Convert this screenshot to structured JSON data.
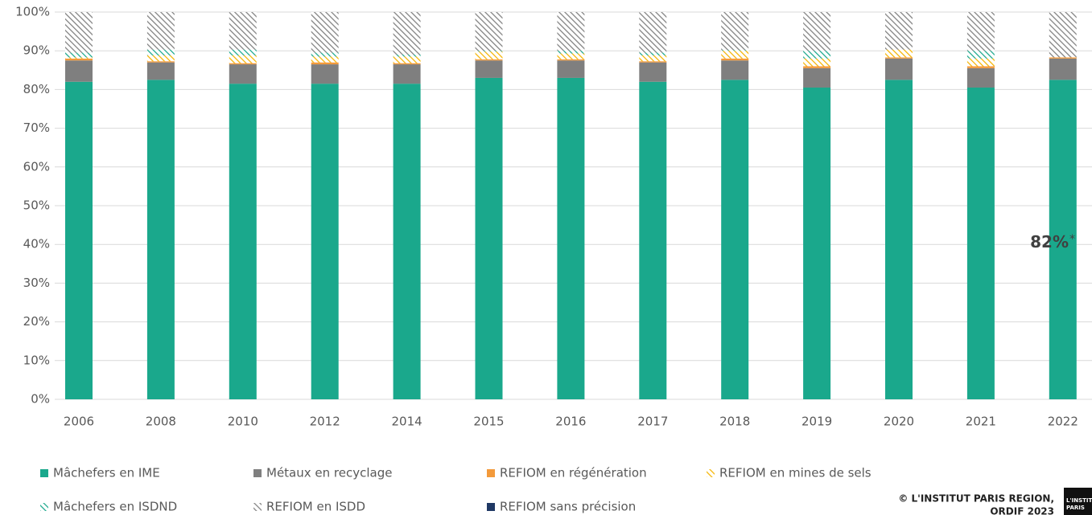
{
  "chart_data": {
    "type": "stacked_bar",
    "categories": [
      "2006",
      "2008",
      "2010",
      "2012",
      "2014",
      "2015",
      "2016",
      "2017",
      "2018",
      "2019",
      "2020",
      "2021",
      "2022"
    ],
    "series": [
      {
        "name": "Mâchefers en IME",
        "color": "#1aa88c",
        "hatch": false,
        "values": [
          82,
          82.5,
          81.5,
          81.5,
          81.5,
          83,
          83,
          82,
          82.5,
          80.5,
          82.5,
          80.5,
          82.5
        ]
      },
      {
        "name": "Métaux en recyclage",
        "color": "#7f7f7f",
        "hatch": false,
        "values": [
          5.5,
          4.5,
          5,
          5,
          5,
          4.5,
          4.5,
          5,
          5,
          5,
          5.5,
          5,
          5.5
        ]
      },
      {
        "name": "REFIOM en régénération",
        "color": "#f39a3b",
        "hatch": false,
        "values": [
          0.5,
          0.3,
          0.3,
          0.5,
          0.3,
          0.3,
          0.3,
          0.3,
          0.5,
          0.5,
          0.3,
          0.5,
          0.3
        ]
      },
      {
        "name": "REFIOM en mines de sels",
        "color": "#f5b400",
        "hatch": true,
        "values": [
          0.3,
          1.5,
          2,
          1.5,
          1.7,
          2,
          1.5,
          1.5,
          2,
          2,
          2,
          2,
          0
        ]
      },
      {
        "name": "Mâchefers en ISDND",
        "color": "#1aa88c",
        "hatch": true,
        "values": [
          1.2,
          1.5,
          1.5,
          1,
          0.5,
          0.2,
          0.7,
          0.7,
          0.2,
          2,
          0,
          2,
          0
        ]
      },
      {
        "name": "REFIOM en ISDD",
        "color": "#7f7f7f",
        "hatch": true,
        "values": [
          10.5,
          9.7,
          9.7,
          10.5,
          11,
          10,
          10,
          10.5,
          9.8,
          10,
          9.7,
          10,
          11.7
        ]
      },
      {
        "name": "REFIOM sans précision",
        "color": "#1f3864",
        "hatch": false,
        "values": [
          0,
          0,
          0,
          0,
          0,
          0,
          0,
          0,
          0,
          0,
          0,
          0,
          0
        ]
      }
    ],
    "ylim": [
      0,
      100
    ],
    "yticks": [
      {
        "value": 0,
        "label": "0%"
      },
      {
        "value": 10,
        "label": "10%"
      },
      {
        "value": 20,
        "label": "20%"
      },
      {
        "value": 30,
        "label": "30%"
      },
      {
        "value": 40,
        "label": "40%"
      },
      {
        "value": 50,
        "label": "50%"
      },
      {
        "value": 60,
        "label": "60%"
      },
      {
        "value": 70,
        "label": "70%"
      },
      {
        "value": 80,
        "label": "80%"
      },
      {
        "value": 90,
        "label": "90%"
      },
      {
        "value": 100,
        "label": "100%"
      }
    ],
    "grid": true,
    "annotation": {
      "text": "82%",
      "suffix": "*"
    },
    "credit": [
      "© L'INSTITUT PARIS REGION,",
      "ORDIF 2023"
    ],
    "logo": [
      "L'INSTIT",
      "PARIS"
    ]
  }
}
